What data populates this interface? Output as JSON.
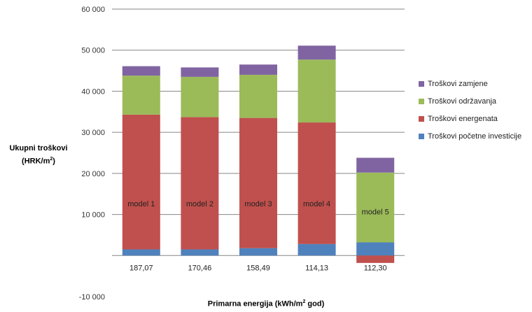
{
  "chart_data": {
    "type": "bar",
    "stacked": true,
    "ylabel_line1": "Ukupni troškovi",
    "ylabel_line2_prefix": "(HRK/m",
    "ylabel_line2_sup": "2",
    "ylabel_line2_suffix": ")",
    "xlabel_prefix": "Primarna energija (kWh/m",
    "xlabel_sup": "2",
    "xlabel_suffix": " god)",
    "ylim": [
      -10000,
      60000
    ],
    "yticks": [
      -10000,
      0,
      10000,
      20000,
      30000,
      40000,
      50000,
      60000
    ],
    "ytick_labels": [
      "-10 000",
      "",
      "10 000",
      "20 000",
      "30 000",
      "40 000",
      "50 000",
      "60 000"
    ],
    "grid": true,
    "legend_position": "right",
    "categories": [
      "187,07",
      "170,46",
      "158,49",
      "114,13",
      "112,30"
    ],
    "bar_labels": [
      "model 1",
      "model 2",
      "model 3",
      "model 4",
      "model 5"
    ],
    "series": [
      {
        "name": "Troškovi početne investicije",
        "color": "#4f81bd",
        "values": [
          1500,
          1500,
          1800,
          2800,
          3200
        ]
      },
      {
        "name": "Troškovi energenata",
        "color": "#c0504d",
        "values": [
          32800,
          32200,
          31700,
          29600,
          -1800
        ]
      },
      {
        "name": "Troškovi održavanja",
        "color": "#9bbb59",
        "values": [
          9500,
          9800,
          10500,
          15300,
          17000
        ]
      },
      {
        "name": "Troškovi zamjene",
        "color": "#8064a2",
        "values": [
          2300,
          2300,
          2500,
          3400,
          3600
        ]
      }
    ]
  }
}
